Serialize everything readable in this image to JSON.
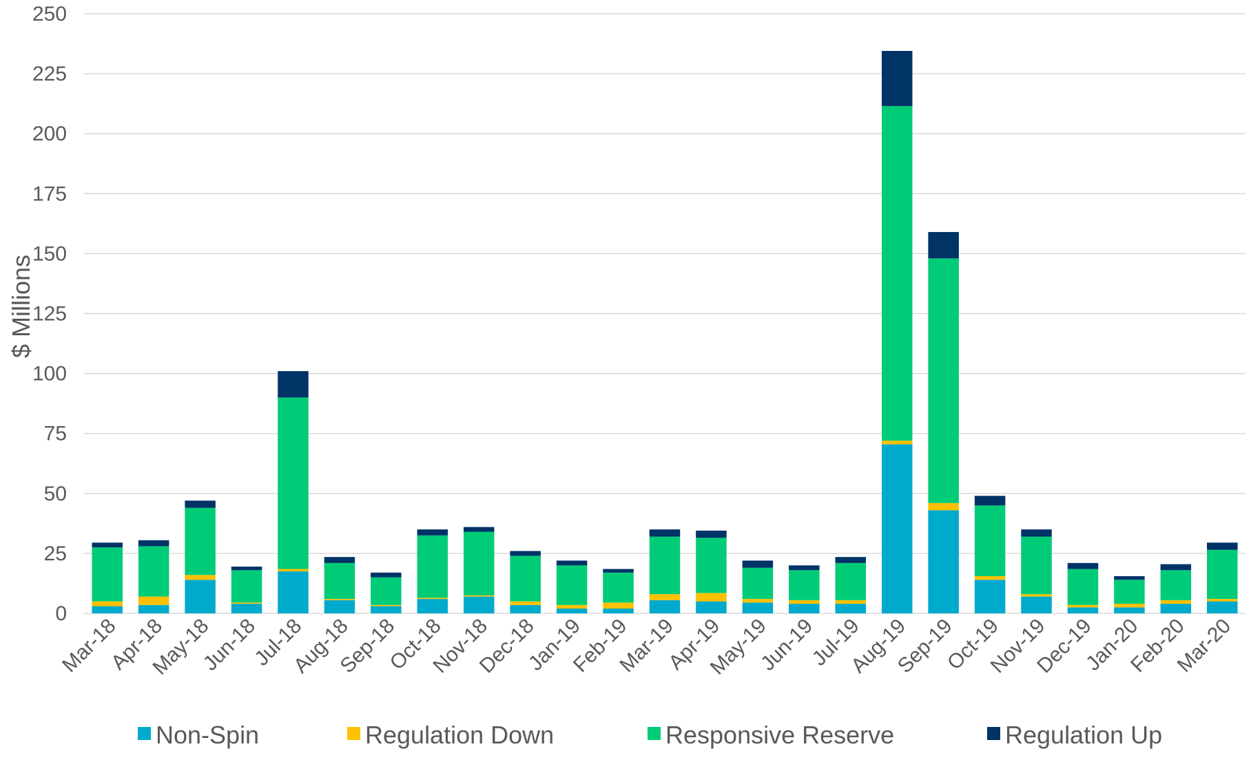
{
  "chart_data": {
    "type": "bar",
    "stacked": true,
    "title": "",
    "xlabel": "",
    "ylabel": "$ Millions",
    "ylim": [
      0,
      250
    ],
    "yticks": [
      0,
      25,
      50,
      75,
      100,
      125,
      150,
      175,
      200,
      225,
      250
    ],
    "grid": true,
    "legend_position": "bottom",
    "categories": [
      "Mar-18",
      "Apr-18",
      "May-18",
      "Jun-18",
      "Jul-18",
      "Aug-18",
      "Sep-18",
      "Oct-18",
      "Nov-18",
      "Dec-18",
      "Jan-19",
      "Feb-19",
      "Mar-19",
      "Apr-19",
      "May-19",
      "Jun-19",
      "Jul-19",
      "Aug-19",
      "Sep-19",
      "Oct-19",
      "Nov-19",
      "Dec-19",
      "Jan-20",
      "Feb-20",
      "Mar-20"
    ],
    "series": [
      {
        "name": "Non-Spin",
        "color": "#00AACC",
        "values": [
          3,
          3.5,
          14,
          4,
          17.5,
          5.5,
          3,
          6,
          7,
          3.5,
          2,
          2,
          5.5,
          5,
          4.5,
          4,
          4,
          70.5,
          43,
          14,
          7,
          2.5,
          2.5,
          4,
          5
        ]
      },
      {
        "name": "Regulation Down",
        "color": "#FFC000",
        "values": [
          2,
          3.5,
          2,
          0.5,
          1,
          0.5,
          0.5,
          0.5,
          0.5,
          1.5,
          1.5,
          2.5,
          2.5,
          3.5,
          1.5,
          1.5,
          1.5,
          1.5,
          3,
          1.5,
          1,
          1,
          1.5,
          1.5,
          1
        ]
      },
      {
        "name": "Responsive Reserve",
        "color": "#00CC77",
        "values": [
          22.5,
          21,
          28,
          13.5,
          71.5,
          15,
          11.5,
          26,
          26.5,
          19,
          16.5,
          12.5,
          24,
          23,
          13,
          12.5,
          15.5,
          139.5,
          102,
          29.5,
          24,
          15,
          10,
          12.5,
          20.5
        ]
      },
      {
        "name": "Regulation Up",
        "color": "#003366",
        "values": [
          2,
          2.5,
          3,
          1.5,
          11,
          2.5,
          2,
          2.5,
          2,
          2,
          2,
          1.5,
          3,
          3,
          3,
          2,
          2.5,
          23,
          11,
          4,
          3,
          2.5,
          1.5,
          2.5,
          3
        ]
      }
    ]
  }
}
